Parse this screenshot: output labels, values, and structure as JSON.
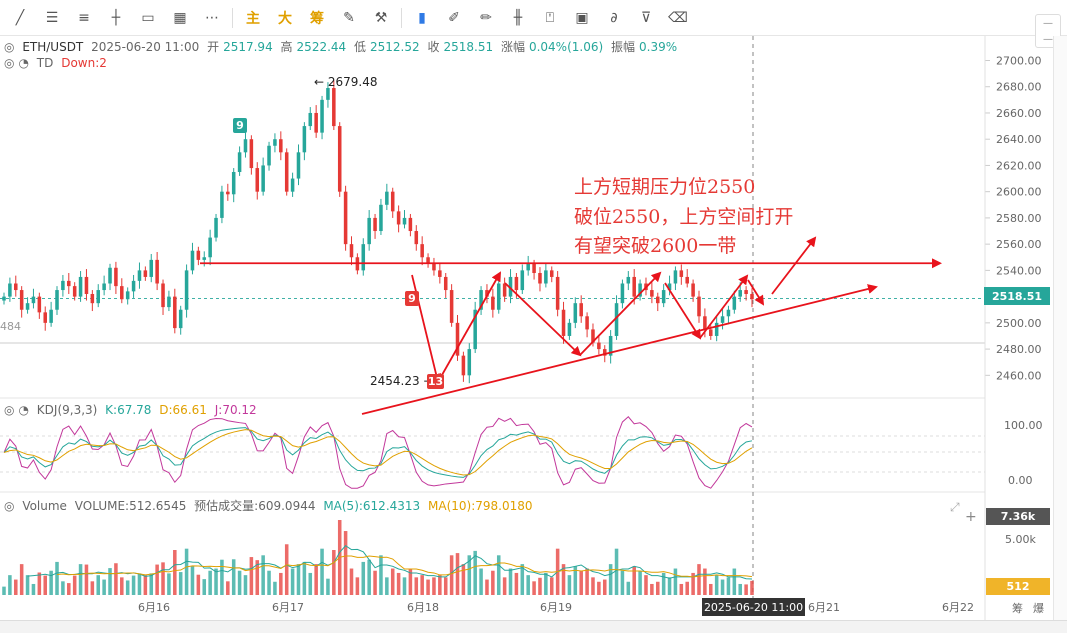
{
  "toolbar": {
    "tools": [
      "line-icon",
      "hline-icon",
      "channel-icon",
      "crosshair-icon",
      "rect-icon",
      "ruler-icon",
      "more-icon"
    ],
    "text_buttons": [
      "主",
      "大",
      "筹"
    ],
    "tools2": [
      "edit-icon",
      "brush-icon",
      "bookmark-icon",
      "pen-icon",
      "draw-icon",
      "candle-icon",
      "alert-icon",
      "layout-icon",
      "magnet-icon",
      "filter-icon",
      "trash-icon"
    ]
  },
  "legend": {
    "symbol": "ETH/USDT",
    "datetime": "2025-06-20 11:00",
    "open_label": "开",
    "open": "2517.94",
    "high_label": "高",
    "high": "2522.44",
    "low_label": "低",
    "low": "2512.52",
    "close_label": "收",
    "close": "2518.51",
    "change_label": "涨幅",
    "change": "0.04%(1.06)",
    "amp_label": "振幅",
    "amp": "0.39%",
    "td_label": "TD",
    "td_value": "Down:2"
  },
  "kdj": {
    "name": "KDJ(9,3,3)",
    "k": "K:67.78",
    "d": "D:66.61",
    "j": "J:70.12"
  },
  "volume": {
    "name": "Volume",
    "vol": "VOLUME:512.6545",
    "est": "预估成交量:609.0944",
    "ma5": "MA(5):612.4313",
    "ma10": "MA(10):798.0180",
    "tag_top": "7.36k",
    "tag_current": "512",
    "axis_5k": "5.00k"
  },
  "annotations": [
    "上方短期压力位2550",
    "破位2550，上方空间打开",
    "有望突破2600一带"
  ],
  "marks": {
    "high": "2679.48",
    "low": "2454.23",
    "left_partial": "484"
  },
  "badges": {
    "nine_top": "9",
    "nine_mid": "9",
    "thirteen": "13"
  },
  "current_price_tag": "2518.51",
  "crosshair_date": "2025-06-20 11:00",
  "colors": {
    "up": "#26a69a",
    "down": "#e53935",
    "trend": "#e8131c"
  },
  "chart_data": {
    "type": "candlestick",
    "symbol": "ETH/USDT",
    "interval": "1h",
    "price_axis": {
      "ticks": [
        2460,
        2480,
        2500,
        2520,
        2540,
        2560,
        2580,
        2600,
        2620,
        2640,
        2660,
        2680,
        2700
      ],
      "range": [
        2445,
        2708
      ]
    },
    "kdj_axis": {
      "ticks": [
        "100.00",
        "0.00"
      ]
    },
    "time_axis_labels": [
      "6月16",
      "6月17",
      "6月18",
      "6月19",
      "6月20",
      "6月21",
      "6月22"
    ],
    "bottom_labels": [
      "筹",
      "爆"
    ],
    "resistance_level": 2550,
    "close_series": [
      2520,
      2530,
      2525,
      2510,
      2515,
      2520,
      2508,
      2500,
      2510,
      2525,
      2532,
      2528,
      2520,
      2535,
      2522,
      2515,
      2525,
      2530,
      2542,
      2528,
      2518,
      2524,
      2532,
      2540,
      2535,
      2548,
      2530,
      2512,
      2520,
      2496,
      2510,
      2540,
      2555,
      2548,
      2550,
      2565,
      2580,
      2600,
      2598,
      2615,
      2630,
      2640,
      2618,
      2600,
      2620,
      2635,
      2640,
      2630,
      2600,
      2610,
      2630,
      2650,
      2660,
      2645,
      2670,
      2679,
      2650,
      2600,
      2560,
      2550,
      2540,
      2560,
      2580,
      2570,
      2590,
      2600,
      2585,
      2575,
      2580,
      2570,
      2560,
      2550,
      2545,
      2540,
      2535,
      2525,
      2500,
      2475,
      2460,
      2480,
      2510,
      2525,
      2520,
      2510,
      2530,
      2520,
      2535,
      2525,
      2540,
      2545,
      2538,
      2530,
      2540,
      2535,
      2510,
      2490,
      2500,
      2515,
      2505,
      2495,
      2485,
      2480,
      2475,
      2490,
      2515,
      2530,
      2535,
      2520,
      2530,
      2525,
      2520,
      2515,
      2525,
      2530,
      2540,
      2535,
      2530,
      2520,
      2505,
      2495,
      2490,
      2500,
      2505,
      2510,
      2520,
      2525,
      2522,
      2518
    ]
  }
}
